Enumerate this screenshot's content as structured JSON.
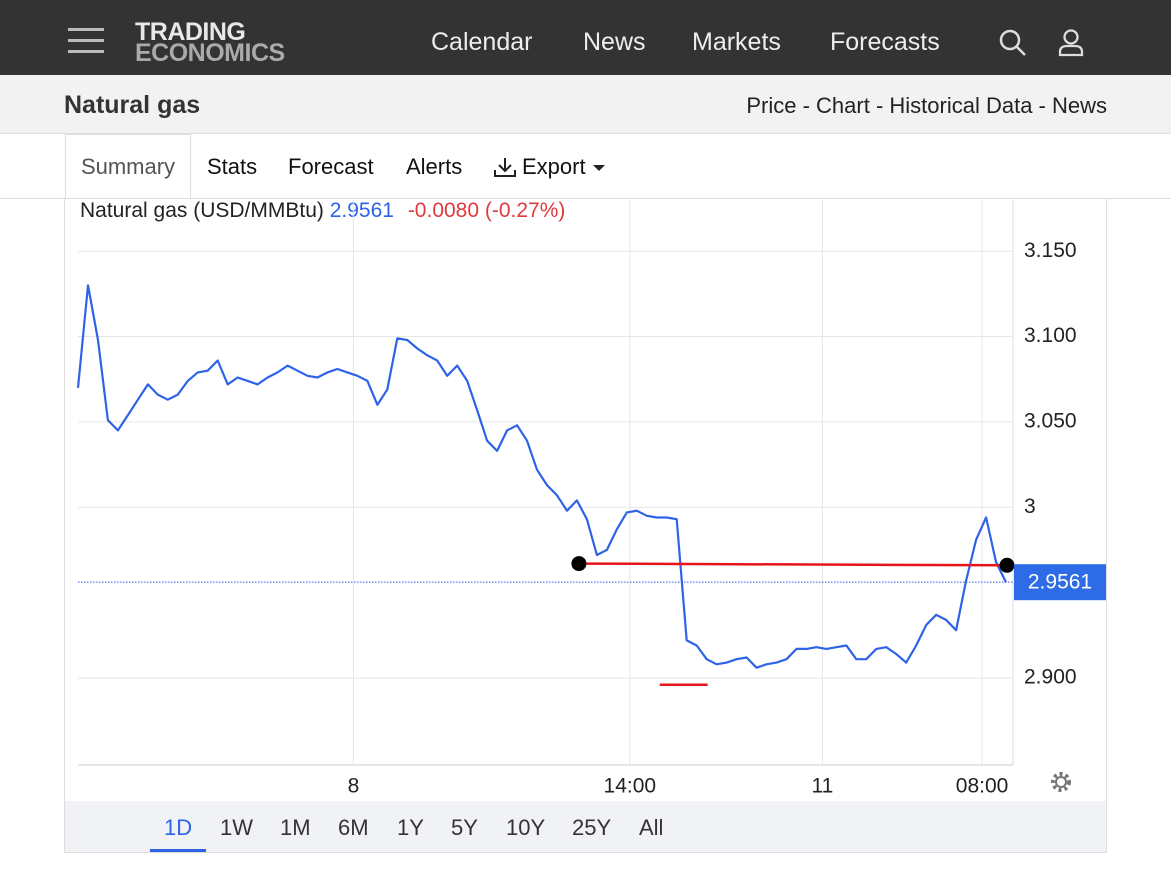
{
  "nav": {
    "logo": [
      "TRADING",
      "ECONOMICS"
    ],
    "links": [
      "Calendar",
      "News",
      "Markets",
      "Forecasts"
    ]
  },
  "header": {
    "title": "Natural gas",
    "links": "Price - Chart - Historical Data - News"
  },
  "tabs": [
    "Summary",
    "Stats",
    "Forecast",
    "Alerts",
    "Export"
  ],
  "chart_data": {
    "type": "line",
    "label": "Natural gas (USD/MMBtu)",
    "price": 2.9561,
    "change": "-0.0080 (-0.27%)",
    "series": [
      {
        "color": "#2e63e8",
        "values": [
          3.07,
          3.13,
          3.098,
          3.051,
          3.045,
          3.054,
          3.063,
          3.072,
          3.066,
          3.063,
          3.066,
          3.074,
          3.079,
          3.08,
          3.086,
          3.072,
          3.076,
          3.074,
          3.072,
          3.076,
          3.079,
          3.083,
          3.08,
          3.077,
          3.076,
          3.079,
          3.081,
          3.079,
          3.077,
          3.074,
          3.06,
          3.069,
          3.099,
          3.098,
          3.093,
          3.089,
          3.086,
          3.077,
          3.083,
          3.074,
          3.057,
          3.039,
          3.033,
          3.045,
          3.048,
          3.039,
          3.022,
          3.013,
          3.007,
          2.998,
          3.004,
          2.993,
          2.972,
          2.975,
          2.987,
          2.997,
          2.998,
          2.995,
          2.994,
          2.994,
          2.993,
          2.922,
          2.919,
          2.911,
          2.908,
          2.909,
          2.911,
          2.912,
          2.906,
          2.908,
          2.909,
          2.911,
          2.917,
          2.917,
          2.918,
          2.917,
          2.918,
          2.919,
          2.911,
          2.911,
          2.917,
          2.918,
          2.914,
          2.909,
          2.919,
          2.931,
          2.937,
          2.934,
          2.928,
          2.957,
          2.981,
          2.994,
          2.968,
          2.956
        ]
      }
    ],
    "trend_line": {
      "x": [
        50.2,
        93.1
      ],
      "values": [
        2.967,
        2.966
      ],
      "color": "#e8141c"
    },
    "low_marker": {
      "x": [
        58.3,
        63.1
      ],
      "value": 2.896
    },
    "xlim": [
      0,
      93.7
    ],
    "ylim": [
      2.849,
      3.18
    ],
    "xticks": [
      {
        "value": 27.6,
        "label": "8"
      },
      {
        "value": 55.3,
        "label": "14:00"
      },
      {
        "value": 74.6,
        "label": "11"
      },
      {
        "value": 90.6,
        "label": "08:00"
      }
    ],
    "yticks": [
      {
        "value": 2.9,
        "label": "2.900"
      },
      3,
      {
        "value": 3.05,
        "label": "3.050"
      },
      {
        "value": 3.1,
        "label": "3.100"
      },
      {
        "value": 3.15,
        "label": "3.150"
      }
    ],
    "grid": true,
    "ranges": [
      "1D",
      "1W",
      "1M",
      "6M",
      "1Y",
      "5Y",
      "10Y",
      "25Y",
      "All"
    ]
  }
}
